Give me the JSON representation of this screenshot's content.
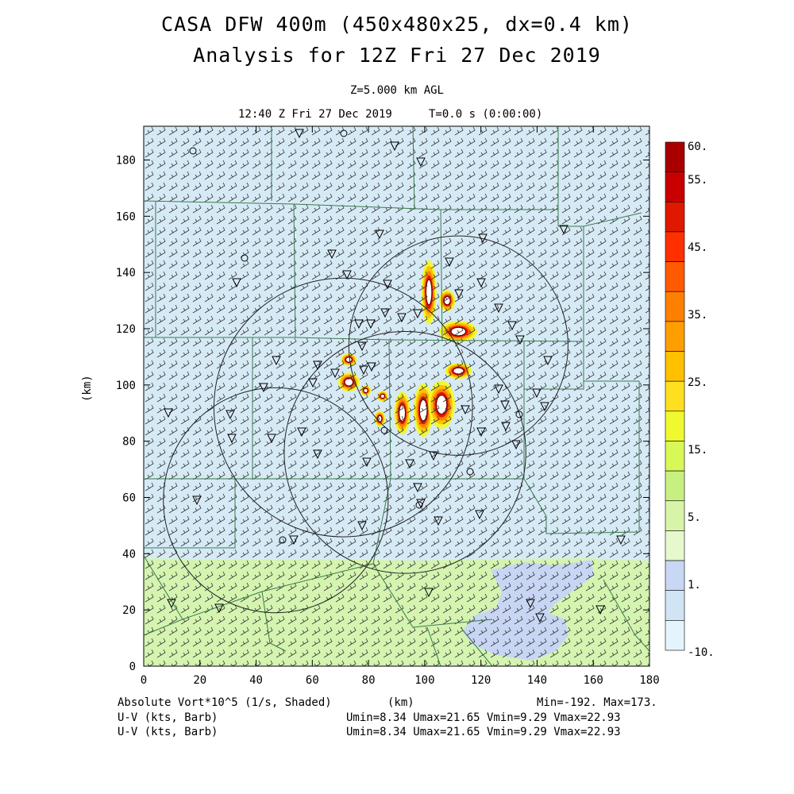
{
  "header": {
    "title_line1": "CASA DFW 400m (450x480x25, dx=0.4 km)",
    "title_line2": "Analysis for 12Z Fri 27 Dec 2019",
    "level": "Z=5.000 km AGL",
    "valid_time": "12:40 Z Fri 27 Dec 2019",
    "forecast_time": "T=0.0 s (0:00:00)"
  },
  "axes": {
    "x_label": "(km)",
    "y_label": "(km)",
    "x_ticks": [
      "0",
      "20",
      "40",
      "60",
      "80",
      "100",
      "120",
      "140",
      "160",
      "180"
    ],
    "y_ticks": [
      "0",
      "20",
      "40",
      "60",
      "80",
      "100",
      "120",
      "140",
      "160",
      "180"
    ],
    "x_range": [
      0,
      180
    ],
    "y_range": [
      0,
      192
    ]
  },
  "colorbar": {
    "labels": [
      "60.",
      "55.",
      "45.",
      "35.",
      "25.",
      "15.",
      "5.",
      "1.",
      "-10."
    ],
    "colors": [
      "#a80000",
      "#c80000",
      "#e01800",
      "#ff3000",
      "#ff5a00",
      "#ff8000",
      "#ff9e00",
      "#ffc000",
      "#ffe020",
      "#f0f830",
      "#d8f858",
      "#c8f080",
      "#d8f4a8",
      "#e6f8cc",
      "#c8d8f4",
      "#d0e4f4",
      "#e4f4fc"
    ]
  },
  "footer": {
    "field_label": "Absolute Vort*10^5 (1/s, Shaded)",
    "x_unit": "(km)",
    "minmax": "Min=-192. Max=173.",
    "wind1_label": "U-V (kts, Barb)",
    "wind1_stats": "Umin=8.34 Umax=21.65 Vmin=9.29 Vmax=22.93",
    "wind2_label": "U-V (kts, Barb)",
    "wind2_stats": "Umin=8.34 Umax=21.65 Vmin=9.29 Vmax=22.93"
  },
  "map_colors": {
    "background": "#d6eaf6",
    "green": "#d4f4b0",
    "blue_patch": "#c8d6f4",
    "county_lines": "#3a7a4a"
  },
  "radars": [
    {
      "x": 112,
      "y": 114,
      "r": 39
    },
    {
      "x": 71,
      "y": 92,
      "r": 46
    },
    {
      "x": 93,
      "y": 76,
      "r": 43
    },
    {
      "x": 47,
      "y": 59,
      "r": 40
    }
  ],
  "vortex_blobs": [
    {
      "x": 101.5,
      "y": 133,
      "rx": 1.4,
      "ry": 6
    },
    {
      "x": 108,
      "y": 130,
      "rx": 1.5,
      "ry": 2
    },
    {
      "x": 112,
      "y": 119,
      "rx": 3.5,
      "ry": 2
    },
    {
      "x": 112,
      "y": 105,
      "rx": 2.5,
      "ry": 1.5
    },
    {
      "x": 73,
      "y": 109,
      "rx": 1.5,
      "ry": 1.2
    },
    {
      "x": 73,
      "y": 101,
      "rx": 2,
      "ry": 1.8
    },
    {
      "x": 79,
      "y": 98,
      "rx": 1,
      "ry": 1
    },
    {
      "x": 85,
      "y": 96,
      "rx": 1,
      "ry": 1
    },
    {
      "x": 84,
      "y": 88,
      "rx": 1,
      "ry": 1.5
    },
    {
      "x": 92,
      "y": 90,
      "rx": 1.5,
      "ry": 4
    },
    {
      "x": 99.5,
      "y": 91,
      "rx": 1.8,
      "ry": 5
    },
    {
      "x": 106,
      "y": 93,
      "rx": 2.5,
      "ry": 4.5
    }
  ]
}
